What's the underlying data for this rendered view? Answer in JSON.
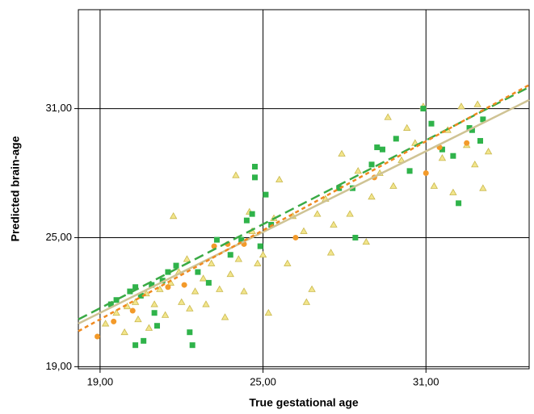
{
  "chart_data": {
    "type": "scatter",
    "xlabel": "True gestational age",
    "ylabel": "Predicted brain-age",
    "xlim": [
      18.2,
      34.8
    ],
    "ylim": [
      18.9,
      35.6
    ],
    "xticks": [
      {
        "value": 19,
        "label": "19,00"
      },
      {
        "value": 25,
        "label": "25,00"
      },
      {
        "value": 31,
        "label": "31,00"
      }
    ],
    "yticks": [
      {
        "value": 19,
        "label": "19,00"
      },
      {
        "value": 25,
        "label": "25,00"
      },
      {
        "value": 31,
        "label": "31,00"
      }
    ],
    "grid": true,
    "series": [
      {
        "kind": "points",
        "marker": "triangle",
        "color": "#f2e58c",
        "stroke": "#c9b84c",
        "x": [
          19.2,
          19.6,
          19.9,
          20.0,
          20.3,
          20.4,
          20.7,
          20.8,
          21.0,
          21.2,
          21.4,
          21.6,
          21.7,
          21.9,
          22.0,
          22.2,
          22.3,
          22.5,
          22.8,
          22.9,
          23.1,
          23.4,
          23.6,
          23.8,
          24.0,
          24.1,
          24.3,
          24.5,
          24.6,
          24.8,
          25.0,
          25.2,
          25.4,
          25.6,
          25.9,
          26.1,
          26.5,
          26.8,
          27.0,
          27.3,
          27.6,
          27.9,
          28.2,
          28.5,
          28.8,
          29.0,
          29.3,
          29.6,
          29.8,
          30.1,
          30.3,
          30.6,
          30.9,
          31.3,
          31.6,
          31.8,
          32.0,
          32.3,
          32.5,
          32.8,
          33.1,
          33.3,
          32.9,
          27.5,
          26.6
        ],
        "values": [
          21.0,
          21.5,
          20.6,
          21.8,
          22.0,
          21.2,
          22.4,
          20.8,
          21.9,
          22.6,
          21.4,
          22.9,
          26.0,
          23.4,
          22.0,
          24.0,
          21.7,
          22.5,
          23.1,
          21.9,
          23.8,
          22.6,
          21.3,
          23.3,
          27.9,
          24.0,
          22.5,
          26.2,
          25.3,
          23.8,
          24.2,
          21.5,
          25.9,
          27.7,
          23.8,
          26.0,
          25.3,
          22.6,
          26.1,
          26.8,
          25.6,
          28.9,
          26.1,
          28.1,
          24.8,
          26.9,
          28.0,
          30.6,
          27.4,
          28.6,
          30.1,
          29.4,
          31.1,
          27.4,
          28.7,
          30.0,
          27.1,
          31.1,
          29.3,
          28.4,
          27.3,
          29.0,
          31.2,
          24.3,
          22.0
        ]
      },
      {
        "kind": "points",
        "marker": "square",
        "color": "#2fb34a",
        "x": [
          19.4,
          19.6,
          20.1,
          20.3,
          20.5,
          20.9,
          21.3,
          21.5,
          21.8,
          20.6,
          20.3,
          21.1,
          21.0,
          22.4,
          22.3,
          22.6,
          23.0,
          23.3,
          23.8,
          24.2,
          24.4,
          24.6,
          24.7,
          24.7,
          25.1,
          24.9,
          25.3,
          27.8,
          28.3,
          29.0,
          29.2,
          29.4,
          28.4,
          29.9,
          30.4,
          30.9,
          31.2,
          31.6,
          32.0,
          32.2,
          32.6,
          33.0,
          33.1,
          32.7
        ],
        "values": [
          21.9,
          22.1,
          22.5,
          22.7,
          22.3,
          22.8,
          23.0,
          23.4,
          23.7,
          20.2,
          20.0,
          20.9,
          21.5,
          20.0,
          20.6,
          23.4,
          22.9,
          24.9,
          24.2,
          24.9,
          25.8,
          26.1,
          27.8,
          28.3,
          27.0,
          24.6,
          25.6,
          27.3,
          27.3,
          28.4,
          29.2,
          29.1,
          25.0,
          29.6,
          28.1,
          31.0,
          30.3,
          29.1,
          28.8,
          26.6,
          30.1,
          29.5,
          30.5,
          30.0
        ]
      },
      {
        "kind": "points",
        "marker": "circle",
        "color": "#f39a2a",
        "x": [
          18.9,
          19.5,
          20.2,
          21.5,
          22.1,
          23.2,
          23.7,
          24.3,
          26.2,
          29.1,
          31.0,
          31.5,
          32.5
        ],
        "values": [
          20.4,
          21.1,
          21.6,
          22.7,
          22.8,
          24.6,
          24.7,
          24.7,
          25.0,
          27.8,
          28.0,
          29.2,
          29.4
        ]
      },
      {
        "kind": "line",
        "color": "#cfc394",
        "dash": "",
        "x": [
          18.2,
          34.8
        ],
        "values": [
          21.0,
          31.4
        ]
      },
      {
        "kind": "line",
        "color": "#3aaa45",
        "dash": "12 6",
        "x": [
          18.2,
          34.8
        ],
        "values": [
          21.2,
          32.0
        ]
      },
      {
        "kind": "line",
        "color": "#f08a20",
        "dash": "5 4",
        "x": [
          18.2,
          34.8
        ],
        "values": [
          20.65,
          32.1
        ]
      }
    ]
  }
}
